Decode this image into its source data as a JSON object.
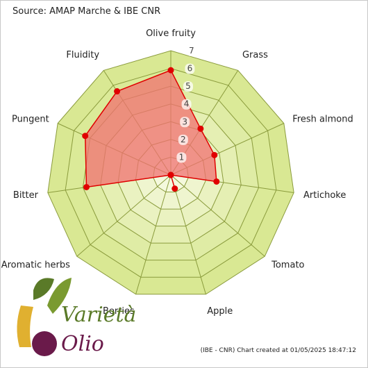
{
  "source_text": "Source: AMAP Marche & IBE CNR",
  "credit_text": "(IBE - CNR) Chart created at 01/05/2025 18:47:12",
  "logo": {
    "word1": "Varietà",
    "word2": "Olio"
  },
  "colors": {
    "ring_fill_outer": "#d6e68a",
    "ring_fill_inner": "#f4f8de",
    "grid_stroke": "#8a9b3c",
    "series_fill": "#f07070",
    "series_stroke": "#e00000",
    "point_fill": "#e00000",
    "logo_gold": "#e0b030",
    "logo_green": "#5a7a28",
    "logo_purple": "#6a1a4a"
  },
  "chart_data": {
    "type": "radar",
    "axes": [
      "Olive fruity",
      "Grass",
      "Fresh almond",
      "Artichoke",
      "Tomato",
      "Apple",
      "Berries",
      "Aromatic herbs",
      "Bitter",
      "Pungent",
      "Fluidity"
    ],
    "ticks": [
      1,
      2,
      3,
      4,
      5,
      6,
      7
    ],
    "range": [
      0,
      7
    ],
    "series": [
      {
        "values": [
          5.9,
          3.1,
          2.7,
          2.6,
          0,
          0.8,
          0,
          0,
          4.8,
          5.3,
          5.6
        ]
      }
    ]
  }
}
